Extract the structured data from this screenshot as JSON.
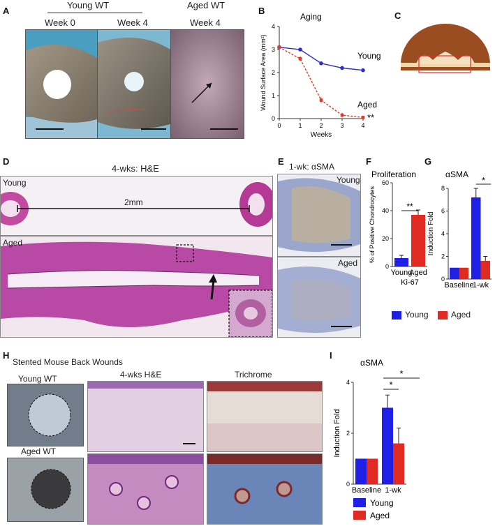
{
  "panel_a": {
    "label": "A",
    "group_young": "Young WT",
    "group_aged": "Aged WT",
    "col1": "Week 0",
    "col2": "Week 4",
    "col3": "Week 4"
  },
  "panel_b": {
    "label": "B"
  },
  "panel_c": {
    "label": "C"
  },
  "panel_d": {
    "label": "D",
    "title": "4-wks: H&E",
    "young": "Young",
    "aged": "Aged",
    "scale_text": "2mm"
  },
  "panel_e": {
    "label": "E",
    "title": "1-wk: αSMA",
    "young": "Young",
    "aged": "Aged"
  },
  "panel_f": {
    "label": "F"
  },
  "panel_g": {
    "label": "G"
  },
  "legend_fg": {
    "young": "Young",
    "aged": "Aged",
    "young_color": "#1f1fe6",
    "aged_color": "#e02a22"
  },
  "panel_h": {
    "label": "H",
    "title": "Stented Mouse Back Wounds",
    "young": "Young WT",
    "aged": "Aged WT",
    "col1": "4-wks H&E",
    "col2": "Trichrome"
  },
  "panel_i": {
    "label": "I"
  },
  "chart_data": [
    {
      "panel": "B",
      "type": "line",
      "title": "Aging",
      "xlabel": "Weeks",
      "ylabel": "Wound Surface Area (mm²)",
      "xlim": [
        0,
        4
      ],
      "ylim": [
        0,
        4
      ],
      "xticks": [
        "0",
        "1",
        "2",
        "3",
        "4"
      ],
      "yticks": [
        "0",
        "1",
        "2",
        "3",
        "4"
      ],
      "series": [
        {
          "name": "Young",
          "color": "#2f2fc8",
          "x": [
            0,
            1,
            2,
            3,
            4
          ],
          "y": [
            3.1,
            3.0,
            2.4,
            2.2,
            2.1
          ],
          "err": [
            0.05,
            0.05,
            0.08,
            0.08,
            0.06
          ]
        },
        {
          "name": "Aged",
          "color": "#e03a22",
          "x": [
            0,
            1,
            2,
            3,
            4
          ],
          "y": [
            3.1,
            2.6,
            0.8,
            0.15,
            0.05
          ],
          "err": [
            0.05,
            0.1,
            0.12,
            0.1,
            0.05
          ]
        }
      ],
      "annotation": "**"
    },
    {
      "panel": "F",
      "type": "bar",
      "title": "Proliferation",
      "ylabel": "% of Positive Chondrocytes",
      "xlabel": "Ki-67",
      "categories": [
        "Young",
        "Aged"
      ],
      "values": [
        6,
        37
      ],
      "errors": [
        2,
        3.5
      ],
      "colors": [
        "#1f1fe6",
        "#e02a22"
      ],
      "ylim": [
        0,
        60
      ],
      "yticks": [
        "0",
        "20",
        "40",
        "60"
      ],
      "annotation": "**"
    },
    {
      "panel": "G",
      "type": "bar",
      "title": "αSMA",
      "ylabel": "Induction Fold",
      "categories": [
        "Baseline",
        "1-wk"
      ],
      "series": [
        {
          "name": "Young",
          "color": "#1f1fe6",
          "values": [
            1,
            7.2
          ],
          "errors": [
            0,
            0.8
          ]
        },
        {
          "name": "Aged",
          "color": "#e02a22",
          "values": [
            1,
            1.6
          ],
          "errors": [
            0,
            0.4
          ]
        }
      ],
      "ylim": [
        0,
        8
      ],
      "yticks": [
        "0",
        "2",
        "4",
        "6",
        "8"
      ],
      "annotation": "*"
    },
    {
      "panel": "I",
      "type": "bar",
      "title": "αSMA",
      "ylabel": "Induction Fold",
      "categories": [
        "Baseline",
        "1-wk"
      ],
      "series": [
        {
          "name": "Young",
          "color": "#1f1fe6",
          "values": [
            1,
            3.0
          ],
          "errors": [
            0,
            0.5
          ]
        },
        {
          "name": "Aged",
          "color": "#e02a22",
          "values": [
            1,
            1.6
          ],
          "errors": [
            0,
            0.6
          ]
        }
      ],
      "ylim": [
        0,
        4
      ],
      "yticks": [
        "0",
        "2",
        "4"
      ],
      "annotations": [
        "*",
        "*"
      ],
      "legend": [
        "Young",
        "Aged"
      ]
    }
  ]
}
